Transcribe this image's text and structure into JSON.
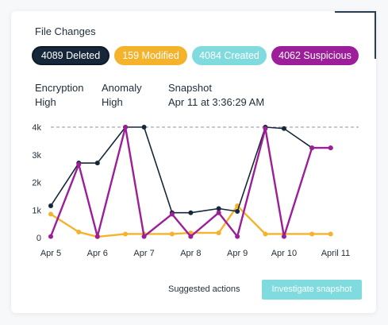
{
  "title": "File Changes",
  "badges": {
    "deleted": "4089 Deleted",
    "modified": "159 Modified",
    "created": "4084 Created",
    "suspicious": "4062 Suspicious"
  },
  "meta": {
    "encryption_label": "Encryption",
    "encryption_value": "High",
    "anomaly_label": "Anomaly",
    "anomaly_value": "High",
    "snapshot_label": "Snapshot",
    "snapshot_value": "Apr 11 at 3:36:29 AM"
  },
  "actions": {
    "suggested": "Suggested actions",
    "investigate": "Investigate snapshot"
  },
  "colors": {
    "deleted": "#16273a",
    "modified": "#f5b32b",
    "created": "#7fdbdd",
    "suspicious": "#9c1e98"
  },
  "chart_data": {
    "type": "line",
    "x_ticks": [
      "Apr 5",
      "Apr 6",
      "Apr 7",
      "Apr 8",
      "Apr 9",
      "Apr 10",
      "April 11"
    ],
    "y_ticks": [
      "0",
      "1k",
      "2k",
      "3k",
      "4k"
    ],
    "ylim": [
      0,
      4000
    ],
    "xlim": [
      0,
      6.6
    ],
    "dashed_reference_line": 4000,
    "series": [
      {
        "key": "deleted",
        "x": [
          0,
          0.6,
          1.0,
          1.6,
          2.0,
          2.6,
          3.0,
          3.6,
          4.0,
          4.6,
          5.0,
          5.6,
          6.0
        ],
        "values": [
          1150,
          2700,
          2700,
          4000,
          4000,
          900,
          900,
          1050,
          950,
          4000,
          3950,
          3250,
          3250
        ]
      },
      {
        "key": "modified",
        "x": [
          0,
          0.6,
          1.0,
          1.6,
          2.0,
          2.6,
          3.0,
          3.6,
          4.0,
          4.6,
          5.0,
          5.6,
          6.0
        ],
        "values": [
          850,
          200,
          30,
          130,
          130,
          130,
          170,
          170,
          1150,
          130,
          130,
          130,
          130
        ]
      },
      {
        "key": "suspicious",
        "x": [
          0,
          0.6,
          1.0,
          1.6,
          2.0,
          2.6,
          3.0,
          3.6,
          4.0,
          4.6,
          5.0,
          5.6,
          6.0
        ],
        "values": [
          40,
          2650,
          40,
          4000,
          40,
          850,
          40,
          900,
          40,
          3950,
          40,
          3250,
          3250
        ]
      }
    ]
  }
}
